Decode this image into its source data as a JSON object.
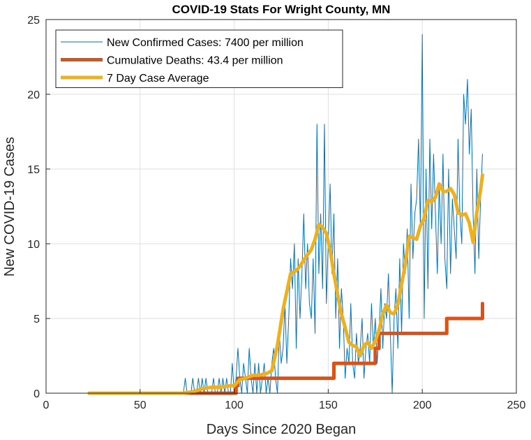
{
  "chart_data": {
    "type": "line",
    "title": "COVID-19 Stats For Wright County, MN",
    "xlabel": "Days Since 2020 Began",
    "ylabel": "New COVID-19 Cases",
    "xlim": [
      0,
      250
    ],
    "ylim": [
      0,
      25
    ],
    "xticks": [
      0,
      50,
      100,
      150,
      200,
      250
    ],
    "yticks": [
      0,
      5,
      10,
      15,
      20,
      25
    ],
    "grid": true,
    "legend_position": "top-left",
    "series": [
      {
        "name": "New Confirmed Cases: 7400 per million",
        "color": "#0072BD",
        "x": [
          23,
          73,
          74,
          75,
          76,
          77,
          78,
          79,
          80,
          81,
          82,
          83,
          84,
          85,
          86,
          87,
          88,
          89,
          90,
          91,
          92,
          93,
          94,
          95,
          96,
          97,
          98,
          99,
          100,
          101,
          102,
          103,
          104,
          105,
          106,
          107,
          108,
          109,
          110,
          111,
          112,
          113,
          114,
          115,
          116,
          117,
          118,
          119,
          120,
          121,
          122,
          123,
          124,
          125,
          126,
          127,
          128,
          129,
          130,
          131,
          132,
          133,
          134,
          135,
          136,
          137,
          138,
          139,
          140,
          141,
          142,
          143,
          144,
          145,
          146,
          147,
          148,
          149,
          150,
          151,
          152,
          153,
          154,
          155,
          156,
          157,
          158,
          159,
          160,
          161,
          162,
          163,
          164,
          165,
          166,
          167,
          168,
          169,
          170,
          171,
          172,
          173,
          174,
          175,
          176,
          177,
          178,
          179,
          180,
          181,
          182,
          183,
          184,
          185,
          186,
          187,
          188,
          189,
          190,
          191,
          192,
          193,
          194,
          195,
          196,
          197,
          198,
          199,
          200,
          201,
          202,
          203,
          204,
          205,
          206,
          207,
          208,
          209,
          210,
          211,
          212,
          213,
          214,
          215,
          216,
          217,
          218,
          219,
          220,
          221,
          222,
          223,
          224,
          225,
          226,
          227,
          228,
          229,
          230,
          231,
          232
        ],
        "y": [
          0,
          0,
          1,
          0,
          0,
          0,
          1,
          0,
          0,
          1,
          0,
          1,
          0,
          1,
          0,
          0,
          0,
          1,
          0,
          0,
          1,
          0,
          1,
          0,
          1,
          0,
          0,
          2,
          0,
          1,
          3,
          1,
          0,
          2,
          1,
          0,
          3,
          1,
          0,
          2,
          0,
          2,
          0,
          1,
          2,
          0,
          1,
          0,
          2,
          3,
          1,
          0,
          4,
          2,
          3,
          6,
          2,
          5,
          9,
          7,
          10,
          3,
          9,
          5,
          8,
          12,
          7,
          10,
          6,
          5,
          9,
          4,
          18,
          8,
          12,
          7,
          18,
          6,
          10,
          14,
          8,
          12,
          5,
          9,
          3,
          7,
          5,
          1,
          3,
          2,
          6,
          2,
          1,
          4,
          2,
          3,
          5,
          1,
          3,
          4,
          2,
          6,
          3,
          5,
          2,
          4,
          7,
          3,
          6,
          5,
          8,
          4,
          0,
          5,
          7,
          3,
          9,
          4,
          10,
          8,
          11,
          5,
          14,
          9,
          12,
          13,
          17,
          11,
          24,
          5,
          15,
          7,
          17,
          11,
          16,
          12,
          8,
          14,
          10,
          16,
          9,
          7,
          15,
          8,
          13,
          11,
          9,
          17,
          12,
          10,
          20,
          18,
          21,
          16,
          19,
          12,
          8,
          15,
          9,
          13,
          16
        ]
      },
      {
        "name": "Cumulative Deaths: 43.4 per million",
        "color": "#D95319",
        "x": [
          23,
          100,
          101,
          102,
          120,
          121,
          152,
          153,
          174,
          175,
          176,
          177,
          212,
          213,
          231,
          232
        ],
        "y": [
          0,
          0,
          0.5,
          1,
          1,
          1,
          1,
          2,
          2,
          3,
          3,
          4,
          4,
          5,
          5,
          6
        ]
      },
      {
        "name": "7 Day Case Average",
        "color": "#EDB120",
        "x": [
          23,
          73,
          78,
          83,
          88,
          93,
          98,
          100,
          103,
          106,
          110,
          113,
          117,
          120,
          123,
          126,
          130,
          133,
          135,
          138,
          141,
          143,
          145,
          147,
          149,
          151,
          153,
          155,
          157,
          159,
          161,
          163,
          165,
          167,
          169,
          171,
          173,
          175,
          177,
          179,
          181,
          183,
          185,
          187,
          189,
          191,
          193,
          195,
          197,
          199,
          201,
          203,
          205,
          207,
          209,
          211,
          213,
          215,
          217,
          219,
          221,
          223,
          225,
          227,
          229,
          231,
          232
        ],
        "y": [
          0,
          0,
          0.1,
          0.3,
          0.4,
          0.4,
          0.5,
          0.5,
          0.9,
          1.0,
          1.2,
          1.2,
          1.3,
          1.5,
          3.2,
          5.6,
          8.0,
          8.2,
          8.5,
          9.1,
          9.6,
          10.3,
          11.3,
          11.1,
          10.7,
          9.6,
          8.0,
          6.6,
          5.3,
          4.4,
          3.4,
          3.2,
          3.1,
          2.5,
          3.2,
          3.4,
          3.0,
          3.5,
          4.2,
          5.3,
          5.9,
          5.4,
          5.3,
          5.9,
          7.3,
          8.6,
          10.5,
          10.4,
          10.3,
          11.2,
          11.7,
          12.9,
          12.8,
          13.1,
          14.0,
          13.5,
          13.5,
          13.7,
          13.3,
          12.1,
          11.9,
          12.0,
          11.4,
          10.1,
          12.1,
          13.6,
          14.6
        ]
      }
    ]
  }
}
